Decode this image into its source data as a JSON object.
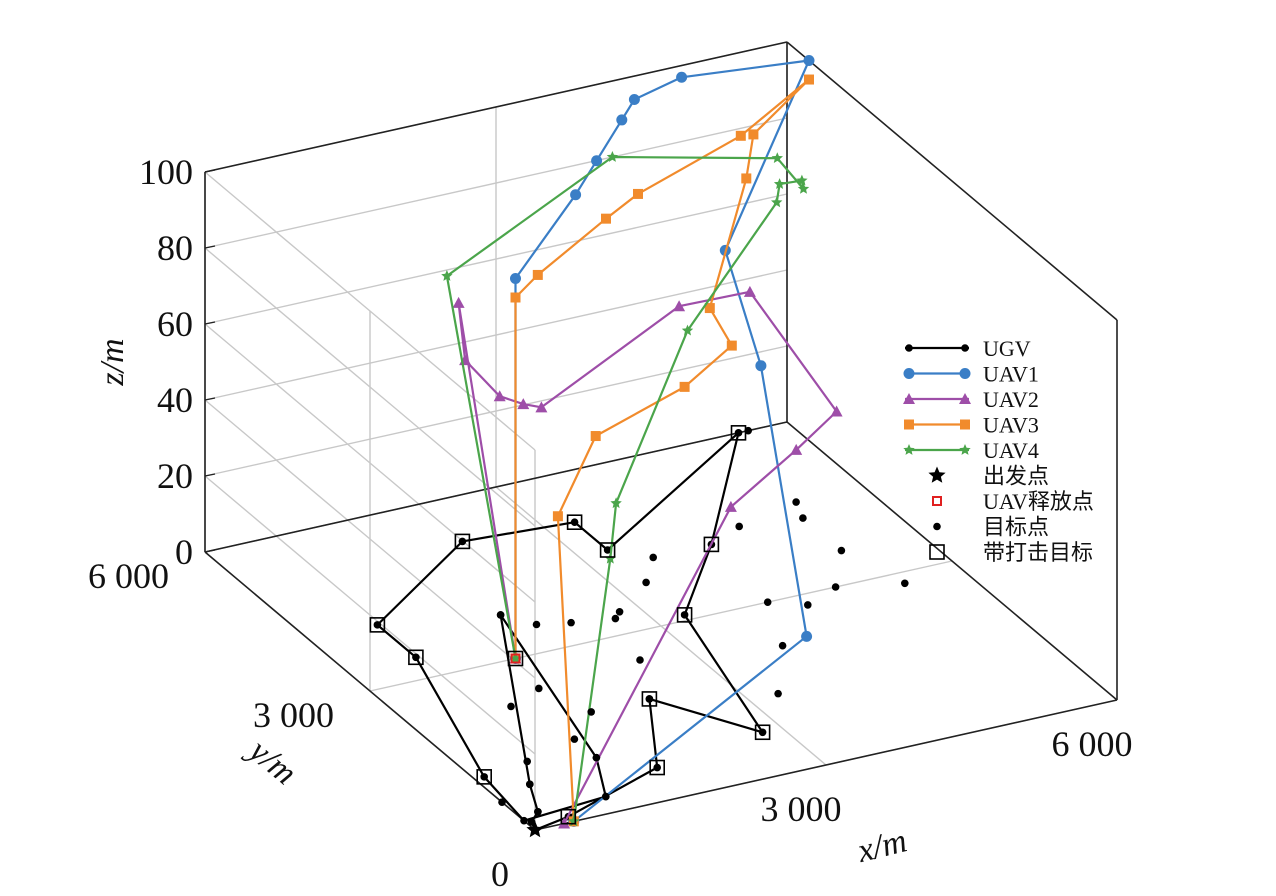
{
  "chart_data": {
    "type": "line",
    "subtype": "3d-path",
    "xlabel": "x/m",
    "ylabel": "y/m",
    "zlabel": "z/m",
    "xlim": [
      0,
      6000
    ],
    "ylim": [
      0,
      6000
    ],
    "zlim": [
      0,
      100
    ],
    "x_ticks": [
      {
        "v": 0,
        "label": "0"
      },
      {
        "v": 3000,
        "label": "3 000"
      },
      {
        "v": 6000,
        "label": "6 000"
      }
    ],
    "y_ticks": [
      {
        "v": 3000,
        "label": "3 000"
      },
      {
        "v": 6000,
        "label": "6 000"
      }
    ],
    "z_ticks": [
      {
        "v": 0,
        "label": "0"
      },
      {
        "v": 20,
        "label": "20"
      },
      {
        "v": 40,
        "label": "40"
      },
      {
        "v": 60,
        "label": "60"
      },
      {
        "v": 80,
        "label": "80"
      },
      {
        "v": 100,
        "label": "100"
      }
    ],
    "grid": true,
    "legend_position": "right",
    "series": [
      {
        "name": "UGV",
        "color": "#000000",
        "marker": "dot",
        "points": [
          [
            0,
            0,
            0
          ],
          [
            400,
            100,
            0
          ],
          [
            1600,
            600,
            0
          ],
          [
            2200,
            1800,
            0
          ],
          [
            2800,
            800,
            0
          ],
          [
            3300,
            3100,
            0
          ],
          [
            4200,
            4200,
            0
          ],
          [
            5500,
            6000,
            0
          ],
          [
            3300,
            4500,
            0
          ],
          [
            3300,
            5100,
            0
          ],
          [
            2200,
            5200,
            0
          ],
          [
            700,
            4100,
            0
          ],
          [
            700,
            3400,
            0
          ],
          [
            100,
            1100,
            0
          ],
          [
            0,
            200,
            0
          ],
          [
            900,
            300,
            0
          ],
          [
            1200,
            1000,
            0
          ],
          [
            1800,
            3800,
            0
          ],
          [
            400,
            800,
            0
          ],
          [
            200,
            300,
            0
          ],
          [
            50,
            150,
            0
          ],
          [
            0,
            0,
            0
          ]
        ]
      },
      {
        "name": "UAV1",
        "color": "#3a7ec6",
        "marker": "circle",
        "points": [
          [
            1500,
            3000,
            0
          ],
          [
            1500,
            3000,
            100
          ],
          [
            2800,
            4200,
            100
          ],
          [
            3300,
            4700,
            100
          ],
          [
            3900,
            5300,
            100
          ],
          [
            4200,
            5600,
            100
          ],
          [
            4800,
            5800,
            100
          ],
          [
            6000,
            5600,
            100
          ],
          [
            4400,
            4300,
            75
          ],
          [
            4200,
            3300,
            58
          ],
          [
            2800,
            0,
            35
          ],
          [
            400,
            0,
            0
          ]
        ]
      },
      {
        "name": "UAV2",
        "color": "#9e4ea8",
        "marker": "triangle",
        "points": [
          [
            1500,
            3000,
            0
          ],
          [
            800,
            2800,
            100
          ],
          [
            300,
            1800,
            100
          ],
          [
            600,
            1700,
            90
          ],
          [
            900,
            1800,
            85
          ],
          [
            1200,
            2000,
            80
          ],
          [
            3300,
            3200,
            80
          ],
          [
            4200,
            3500,
            75
          ],
          [
            4300,
            2100,
            60
          ],
          [
            3600,
            1600,
            60
          ],
          [
            2700,
            1200,
            55
          ],
          [
            300,
            0,
            0
          ]
        ]
      },
      {
        "name": "UAV3",
        "color": "#f18b2c",
        "marker": "square",
        "points": [
          [
            1500,
            3000,
            0
          ],
          [
            1500,
            3000,
            95
          ],
          [
            1900,
            3300,
            95
          ],
          [
            3000,
            4000,
            95
          ],
          [
            3500,
            4300,
            95
          ],
          [
            4900,
            4900,
            95
          ],
          [
            6000,
            5600,
            95
          ],
          [
            5200,
            5200,
            90
          ],
          [
            4900,
            4800,
            85
          ],
          [
            3900,
            3700,
            70
          ],
          [
            3900,
            3300,
            65
          ],
          [
            3300,
            3100,
            60
          ],
          [
            2100,
            2600,
            60
          ],
          [
            1200,
            1700,
            55
          ],
          [
            400,
            0,
            0
          ]
        ]
      },
      {
        "name": "UAV4",
        "color": "#4ba54b",
        "marker": "star",
        "points": [
          [
            1500,
            3000,
            0
          ],
          [
            1700,
            4600,
            80
          ],
          [
            4200,
            6000,
            80
          ],
          [
            5900,
            6000,
            70
          ],
          [
            6000,
            5700,
            65
          ],
          [
            5700,
            5200,
            75
          ],
          [
            5300,
            4900,
            80
          ],
          [
            5100,
            4600,
            80
          ],
          [
            3500,
            3400,
            70
          ],
          [
            1800,
            1700,
            55
          ],
          [
            1400,
            1100,
            50
          ],
          [
            400,
            0,
            0
          ]
        ]
      },
      {
        "name": "出发点",
        "color": "#000000",
        "marker": "pentagram",
        "points": [
          [
            0,
            0,
            0
          ]
        ]
      },
      {
        "name": "UAV释放点",
        "color": "#e02020",
        "marker": "square-small",
        "points": [
          [
            1500,
            3000,
            0
          ]
        ]
      },
      {
        "name": "目标点",
        "color": "#000000",
        "marker": "dot",
        "points": [
          [
            200,
            300,
            0
          ],
          [
            900,
            300,
            0
          ],
          [
            1200,
            1000,
            0
          ],
          [
            1200,
            1400,
            0
          ],
          [
            1800,
            3800,
            0
          ],
          [
            1400,
            2400,
            0
          ],
          [
            2000,
            3500,
            0
          ],
          [
            2300,
            3400,
            0
          ],
          [
            2700,
            3300,
            0
          ],
          [
            2500,
            2500,
            0
          ],
          [
            2200,
            1800,
            0
          ],
          [
            3300,
            1400,
            0
          ],
          [
            3800,
            2200,
            0
          ],
          [
            4100,
            3000,
            0
          ],
          [
            4800,
            3000,
            0
          ],
          [
            4400,
            2800,
            0
          ],
          [
            5400,
            2800,
            0
          ],
          [
            5200,
            3600,
            0
          ],
          [
            5300,
            4600,
            0
          ],
          [
            4600,
            4400,
            0
          ],
          [
            5600,
            6000,
            0
          ],
          [
            5200,
            4300,
            0
          ],
          [
            3600,
            4200,
            0
          ],
          [
            3300,
            3800,
            0
          ],
          [
            2800,
            3400,
            0
          ],
          [
            1000,
            2200,
            0
          ],
          [
            1600,
            1800,
            0
          ],
          [
            600,
            1200,
            0
          ],
          [
            400,
            800,
            0
          ],
          [
            0,
            600,
            0
          ]
        ]
      },
      {
        "name": "带打击目标",
        "color": "#000000",
        "marker": "square-open",
        "points": [
          [
            400,
            100,
            0
          ],
          [
            1600,
            600,
            0
          ],
          [
            2200,
            1800,
            0
          ],
          [
            2800,
            800,
            0
          ],
          [
            3300,
            3100,
            0
          ],
          [
            4200,
            4200,
            0
          ],
          [
            5500,
            6000,
            0
          ],
          [
            3300,
            4500,
            0
          ],
          [
            3300,
            5100,
            0
          ],
          [
            2200,
            5200,
            0
          ],
          [
            700,
            4100,
            0
          ],
          [
            700,
            3400,
            0
          ],
          [
            100,
            1100,
            0
          ],
          [
            1500,
            3000,
            0
          ]
        ]
      }
    ]
  }
}
